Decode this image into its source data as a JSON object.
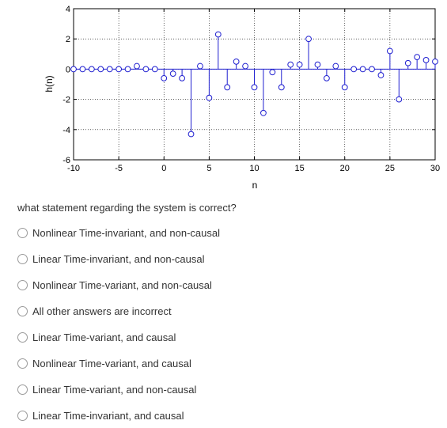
{
  "question": {
    "text": "what statement regarding the system is correct?",
    "options": [
      "Nonlinear Time-invariant, and non-causal",
      "Linear Time-invariant, and non-causal",
      "Nonlinear Time-variant, and non-causal",
      "All other answers are incorrect",
      "Linear Time-variant, and causal",
      "Nonlinear Time-variant, and causal",
      "Linear Time-variant, and non-causal",
      "Linear Time-invariant, and causal"
    ]
  },
  "chart_data": {
    "type": "stem",
    "xlabel": "n",
    "ylabel": "h(n)",
    "xlim": [
      -10,
      30
    ],
    "ylim": [
      -6,
      4
    ],
    "xticks": [
      -10,
      -5,
      0,
      5,
      10,
      15,
      20,
      25,
      30
    ],
    "yticks": [
      -6,
      -4,
      -2,
      0,
      2,
      4
    ],
    "grid": true,
    "marker_color": "#1f1fd0",
    "x": [
      -10,
      -9,
      -8,
      -7,
      -6,
      -5,
      -4,
      -3,
      -2,
      -1,
      0,
      1,
      2,
      3,
      4,
      5,
      6,
      7,
      8,
      9,
      10,
      11,
      12,
      13,
      14,
      15,
      16,
      17,
      18,
      19,
      20,
      21,
      22,
      23,
      24,
      25,
      26,
      27,
      28,
      29,
      30
    ],
    "y": [
      0,
      0,
      0,
      0,
      0,
      0,
      0,
      0.2,
      0,
      0,
      -0.6,
      -0.3,
      -0.6,
      -4.3,
      0.2,
      -1.9,
      2.3,
      -1.2,
      0.5,
      0.2,
      -1.2,
      -2.9,
      -0.2,
      -1.2,
      0.3,
      0.3,
      2.0,
      0.3,
      -0.6,
      0.2,
      -1.2,
      0,
      0,
      0,
      -0.4,
      1.2,
      -2.0,
      0.4,
      0.8,
      0.6,
      0.5
    ]
  }
}
